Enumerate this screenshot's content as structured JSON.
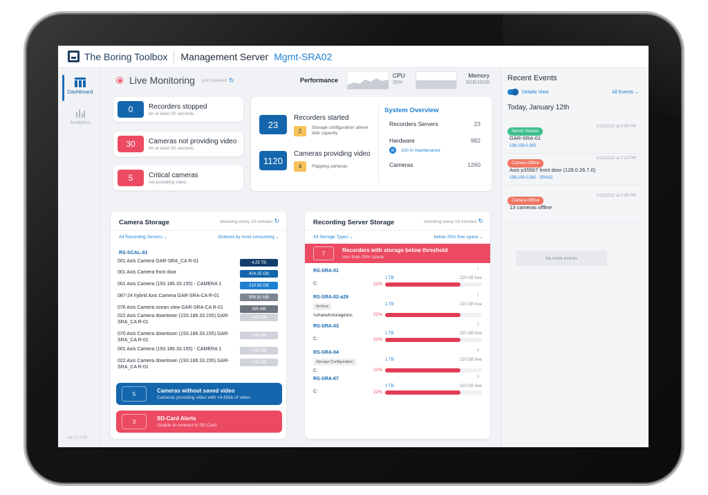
{
  "brand": "The Boring Toolbox",
  "header": {
    "title": "Management Server",
    "server": "Mgmt-SRA02"
  },
  "sidebar": {
    "items": [
      {
        "label": "Dashboard",
        "icon": "dashboard-icon"
      },
      {
        "label": "Analytics",
        "icon": "analytics-icon"
      }
    ],
    "version": "v6.22.0.05"
  },
  "monitor": {
    "title": "Live Monitoring",
    "checked": "just checked"
  },
  "performance": {
    "label": "Performance",
    "cpu_label": "CPU",
    "cpu_value": "35%",
    "mem_label": "Memory",
    "mem_value": "8GB/16GB"
  },
  "status": [
    {
      "value": "0",
      "title": "Recorders stopped",
      "sub": "for at least 30 seconds",
      "color": "#1466ad"
    },
    {
      "value": "30",
      "title": "Cameras not providing video",
      "sub": "for at least 30 seconds",
      "color": "#ec4a63"
    },
    {
      "value": "5",
      "title": "Critical cameras",
      "sub": "not providing video",
      "color": "#ec4a63"
    }
  ],
  "started": {
    "value": "23",
    "title": "Recorders started",
    "badge": "2",
    "badge_text": "Storage configuration above disk capacity"
  },
  "providing": {
    "value": "1120",
    "title": "Cameras providing video",
    "badge": "4",
    "badge_text": "Flapping cameras"
  },
  "overview": {
    "title": "System Overview",
    "rows": [
      {
        "label": "Recorders Servers",
        "value": "23"
      },
      {
        "label": "Hardware",
        "value": "982"
      },
      {
        "label": "Cameras",
        "value": "1260"
      }
    ],
    "maintenance": "100 in maintenance"
  },
  "camera_storage": {
    "title": "Camera Storage",
    "checking": "checking every 15 minutes",
    "filter": "All Recording Servers",
    "order": "Ordered by most consuming",
    "group": "RS-SCAL-01",
    "rows": [
      {
        "name": "001 Axis Camera GAR-SRA_CA R-01",
        "size": "4.25 TB",
        "color": "#123e6b"
      },
      {
        "name": "001 Axis Camera front door",
        "size": "424.25 GB",
        "color": "#1466ad"
      },
      {
        "name": "001 Axis Camera (193.186.33.155) - CAMERA 1",
        "size": "210.92 GB",
        "color": "#1d7fd1"
      },
      {
        "name": "087-24 hybrid Axis Camera GAR-SRA-CA R-01",
        "size": "999.82 MB",
        "color": "#7d8591"
      },
      {
        "name": "076 Axis Camera ocean view GAR-SRA-CA R-01",
        "size": "385 MB",
        "color": "#6b737e"
      },
      {
        "name": "022 Axis Camera downtown (193.186.33.155) GAR-SRA_CA R-01",
        "size": "4.65 KB",
        "color": "#cfd3d9"
      },
      {
        "name": "070 Axis Camera downtown (193.186.33.155) GAR-SRA_CA R-01",
        "size": "4.65 KB",
        "color": "#cfd3d9"
      },
      {
        "name": "001 Axis Camera (193.186.33.155) - CAMERA 1",
        "size": "4.65 KB",
        "color": "#cfd3d9"
      },
      {
        "name": "022 Axis Camera downtown (193.186.33.155) GAR-SRA_CA R-01",
        "size": "4.65 KB",
        "color": "#cfd3d9"
      }
    ],
    "alert1": {
      "value": "5",
      "title": "Cameras without saved video",
      "sub": "Cameras providing video with <4.65kb of video"
    },
    "alert2": {
      "value": "3",
      "title": "SD-Card Alerts",
      "sub": "Unable to connect to SD Card"
    }
  },
  "rs_storage": {
    "title": "Recording Server Storage",
    "checking": "checking every 15 minutes",
    "filter": "All Storage Types",
    "threshold": "below 25% free space",
    "banner": {
      "value": "7",
      "title": "Recorders with storage below threshold",
      "sub": "less than 25% space"
    },
    "rows": [
      {
        "name": "RS-SRA-01",
        "index": "1",
        "tag": "",
        "path": "C:",
        "pct": "22%",
        "fill": 0.78,
        "total": "1 TB",
        "free": "220 GB free"
      },
      {
        "name": "RS-SRA-02-a29",
        "index": "2",
        "tag": "Archive",
        "path": "\\\\shared\\storage\\loc",
        "pct": "22%",
        "fill": 0.78,
        "total": "1 TB",
        "free": "220 GB free"
      },
      {
        "name": "RS-SRA-03",
        "index": "3",
        "tag": "",
        "path": "C:",
        "pct": "22%",
        "fill": 0.78,
        "total": "1 TB",
        "free": "220 GB free"
      },
      {
        "name": "RS-SRA-04",
        "index": "4",
        "tag": "Storage Configuration",
        "path": "C:",
        "pct": "22%",
        "fill": 0.78,
        "total": "1 TB",
        "free": "220 GB free"
      },
      {
        "name": "RS-SRA-67",
        "index": "5",
        "tag": "",
        "path": "C:",
        "pct": "22%",
        "fill": 0.78,
        "total": "1 TB",
        "free": "220 GB free"
      }
    ]
  },
  "events": {
    "title": "Recent Events",
    "details": "Details View",
    "filter": "All Events",
    "date": "Today, January 12th",
    "more": "No more events",
    "items": [
      {
        "label": "Server Started",
        "color": "#3fbf8f",
        "time": "1/12/2022 at 3:45 PM",
        "text": "GAR-SRA-01",
        "ip": "198.156.0.362",
        "extra": ""
      },
      {
        "label": "Camera Offline",
        "color": "#f07662",
        "time": "1/12/2022 at 2:24 PM",
        "text": "Axis p35567 front door (128.0.26.7.0)",
        "ip": "198.156.0.362",
        "extra": "SRA02"
      },
      {
        "label": "Camera Offline",
        "color": "#f07662",
        "time": "1/12/2022 at 2:05 PM",
        "text": "13 cameras offline",
        "ip": "",
        "extra": ""
      }
    ]
  }
}
